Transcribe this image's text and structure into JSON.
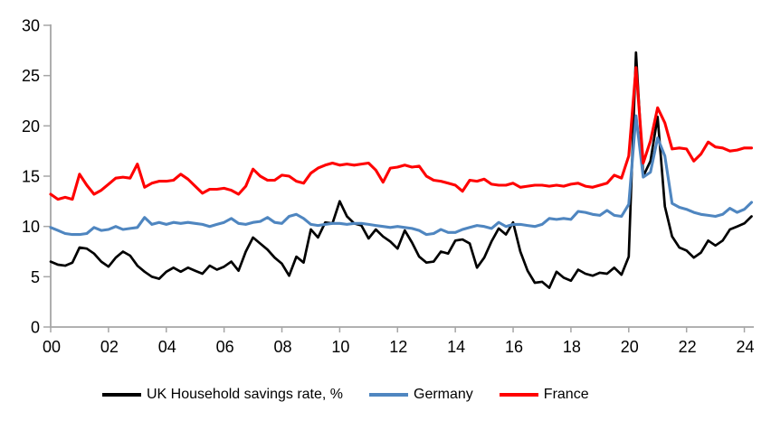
{
  "chart_data": {
    "type": "line",
    "title": "",
    "xlabel": "",
    "ylabel": "",
    "ylim": [
      0,
      30
    ],
    "grid": false,
    "legend_position": "bottom",
    "y_ticks": [
      0,
      5,
      10,
      15,
      20,
      25,
      30
    ],
    "x_tick_labels": [
      "00",
      "02",
      "04",
      "06",
      "08",
      "10",
      "12",
      "14",
      "16",
      "18",
      "20",
      "22",
      "24"
    ],
    "x_tick_step_years": 2,
    "x_start_year": 2000,
    "x_step_years": 0.25,
    "axis_color": "#a6a6a6",
    "series": [
      {
        "name": "UK Household savings rate, %",
        "color": "#000000",
        "values": [
          6.5,
          6.2,
          6.1,
          6.4,
          7.9,
          7.8,
          7.3,
          6.5,
          6.0,
          6.9,
          7.5,
          7.1,
          6.1,
          5.5,
          5.0,
          4.8,
          5.5,
          5.9,
          5.5,
          5.9,
          5.6,
          5.3,
          6.1,
          5.7,
          6.0,
          6.5,
          5.6,
          7.5,
          8.9,
          8.3,
          7.7,
          6.9,
          6.3,
          5.1,
          7.0,
          6.4,
          9.7,
          8.9,
          10.4,
          10.3,
          12.5,
          11.0,
          10.3,
          10.1,
          8.8,
          9.7,
          9.0,
          8.5,
          7.8,
          9.6,
          8.4,
          7.0,
          6.4,
          6.5,
          7.5,
          7.3,
          8.6,
          8.7,
          8.3,
          5.9,
          6.9,
          8.5,
          9.8,
          9.2,
          10.4,
          7.5,
          5.6,
          4.4,
          4.5,
          3.9,
          5.5,
          4.9,
          4.6,
          5.7,
          5.3,
          5.1,
          5.4,
          5.3,
          5.9,
          5.2,
          7.0,
          27.3,
          15.0,
          16.5,
          20.9,
          12.0,
          9.0,
          7.9,
          7.6,
          6.9,
          7.4,
          8.6,
          8.1,
          8.6,
          9.7,
          10.0,
          10.3,
          11.0
        ]
      },
      {
        "name": "Germany",
        "color": "#4f86c0",
        "values": [
          9.9,
          9.6,
          9.3,
          9.2,
          9.2,
          9.3,
          9.9,
          9.6,
          9.7,
          10.0,
          9.7,
          9.8,
          9.9,
          10.9,
          10.2,
          10.4,
          10.2,
          10.4,
          10.3,
          10.4,
          10.3,
          10.2,
          10.0,
          10.2,
          10.4,
          10.8,
          10.3,
          10.2,
          10.4,
          10.5,
          10.9,
          10.4,
          10.3,
          11.0,
          11.2,
          10.8,
          10.2,
          10.1,
          10.2,
          10.3,
          10.3,
          10.2,
          10.3,
          10.3,
          10.2,
          10.1,
          10.0,
          9.9,
          10.0,
          9.9,
          9.8,
          9.6,
          9.2,
          9.3,
          9.7,
          9.4,
          9.4,
          9.7,
          9.9,
          10.1,
          10.0,
          9.8,
          10.4,
          10.0,
          10.2,
          10.2,
          10.1,
          10.0,
          10.2,
          10.8,
          10.7,
          10.8,
          10.7,
          11.5,
          11.4,
          11.2,
          11.1,
          11.6,
          11.1,
          11.0,
          12.2,
          21.0,
          14.9,
          15.4,
          18.8,
          17.0,
          12.3,
          11.9,
          11.7,
          11.4,
          11.2,
          11.1,
          11.0,
          11.2,
          11.8,
          11.4,
          11.7,
          12.4
        ]
      },
      {
        "name": "France",
        "color": "#ff0000",
        "values": [
          13.2,
          12.7,
          12.9,
          12.7,
          15.2,
          14.1,
          13.2,
          13.6,
          14.2,
          14.8,
          14.9,
          14.8,
          16.2,
          13.9,
          14.3,
          14.5,
          14.5,
          14.6,
          15.2,
          14.7,
          14.0,
          13.3,
          13.7,
          13.7,
          13.8,
          13.6,
          13.2,
          14.0,
          15.7,
          15.0,
          14.6,
          14.6,
          15.1,
          15.0,
          14.5,
          14.3,
          15.3,
          15.8,
          16.1,
          16.3,
          16.1,
          16.2,
          16.1,
          16.2,
          16.3,
          15.6,
          14.4,
          15.8,
          15.9,
          16.1,
          15.9,
          16.0,
          15.0,
          14.6,
          14.5,
          14.3,
          14.1,
          13.5,
          14.6,
          14.5,
          14.7,
          14.2,
          14.1,
          14.1,
          14.3,
          13.9,
          14.0,
          14.1,
          14.1,
          14.0,
          14.1,
          14.0,
          14.2,
          14.3,
          14.0,
          13.9,
          14.1,
          14.3,
          15.1,
          14.8,
          17.0,
          25.8,
          16.3,
          18.5,
          21.8,
          20.3,
          17.7,
          17.8,
          17.7,
          16.5,
          17.2,
          18.4,
          17.9,
          17.8,
          17.5,
          17.6,
          17.8,
          17.8
        ]
      }
    ]
  }
}
